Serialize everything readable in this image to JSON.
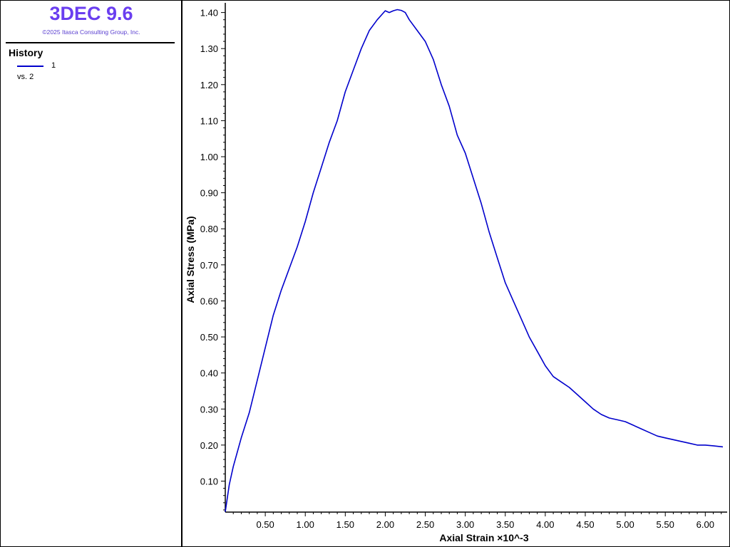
{
  "header": {
    "app_title": "3DEC 9.6",
    "copyright": "©2025 Itasca Consulting Group, Inc."
  },
  "legend": {
    "heading": "History",
    "series_label": "1",
    "vs_label": "vs. 2"
  },
  "colors": {
    "title": "#6a3ef0",
    "series": "#0000cc",
    "axis": "#000000"
  },
  "chart_data": {
    "type": "line",
    "title": "",
    "xlabel": "Axial Strain ×10^-3",
    "ylabel": "Axial Stress (MPa)",
    "xlim": [
      0.0,
      6.22
    ],
    "ylim": [
      0.014,
      1.415
    ],
    "x_ticks": [
      0.5,
      1.0,
      1.5,
      2.0,
      2.5,
      3.0,
      3.5,
      4.0,
      4.5,
      5.0,
      5.5,
      6.0
    ],
    "x_tick_labels": [
      "0.50",
      "1.00",
      "1.50",
      "2.00",
      "2.50",
      "3.00",
      "3.50",
      "4.00",
      "4.50",
      "5.00",
      "5.50",
      "6.00"
    ],
    "y_ticks": [
      0.1,
      0.2,
      0.3,
      0.4,
      0.5,
      0.6,
      0.7,
      0.8,
      0.9,
      1.0,
      1.1,
      1.2,
      1.3,
      1.4
    ],
    "y_tick_labels": [
      "0.10",
      "0.20",
      "0.30",
      "0.40",
      "0.50",
      "0.60",
      "0.70",
      "0.80",
      "0.90",
      "1.00",
      "1.10",
      "1.20",
      "1.30",
      "1.40"
    ],
    "grid": false,
    "legend_position": "left panel",
    "series": [
      {
        "name": "1",
        "color": "#0000cc",
        "x": [
          0.0,
          0.05,
          0.1,
          0.2,
          0.3,
          0.4,
          0.5,
          0.6,
          0.7,
          0.8,
          0.9,
          1.0,
          1.1,
          1.2,
          1.3,
          1.4,
          1.5,
          1.6,
          1.7,
          1.8,
          1.9,
          2.0,
          2.05,
          2.1,
          2.15,
          2.2,
          2.25,
          2.3,
          2.4,
          2.5,
          2.6,
          2.7,
          2.8,
          2.9,
          3.0,
          3.1,
          3.2,
          3.3,
          3.4,
          3.5,
          3.6,
          3.7,
          3.8,
          3.9,
          4.0,
          4.1,
          4.2,
          4.3,
          4.4,
          4.5,
          4.6,
          4.7,
          4.8,
          4.9,
          5.0,
          5.1,
          5.2,
          5.3,
          5.4,
          5.5,
          5.6,
          5.7,
          5.8,
          5.9,
          6.0,
          6.1,
          6.22
        ],
        "y": [
          0.015,
          0.09,
          0.14,
          0.22,
          0.29,
          0.38,
          0.47,
          0.56,
          0.63,
          0.69,
          0.75,
          0.82,
          0.9,
          0.97,
          1.04,
          1.1,
          1.18,
          1.24,
          1.3,
          1.35,
          1.38,
          1.405,
          1.4,
          1.405,
          1.408,
          1.406,
          1.4,
          1.38,
          1.35,
          1.32,
          1.27,
          1.2,
          1.14,
          1.06,
          1.01,
          0.94,
          0.87,
          0.79,
          0.72,
          0.65,
          0.6,
          0.55,
          0.5,
          0.46,
          0.42,
          0.39,
          0.375,
          0.36,
          0.34,
          0.32,
          0.3,
          0.285,
          0.275,
          0.27,
          0.265,
          0.255,
          0.245,
          0.235,
          0.225,
          0.22,
          0.215,
          0.21,
          0.205,
          0.2,
          0.2,
          0.198,
          0.195
        ]
      }
    ]
  }
}
